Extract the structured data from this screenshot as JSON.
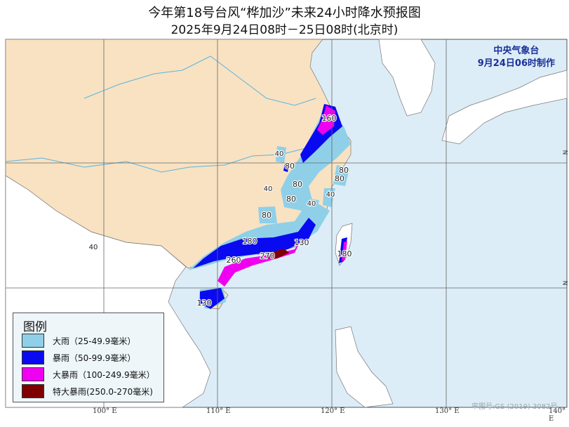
{
  "title": "今年第18号台风“桦加沙”未来24小时降水预报图",
  "subtitle": "2025年9月24日08时－25日08时(北京时)",
  "agency": {
    "name": "中央气象台",
    "issued": "9月24日06时制作"
  },
  "legend": {
    "title": "图例",
    "items": [
      {
        "label": "大雨（25-49.9毫米）",
        "color": "#8fd0e8"
      },
      {
        "label": "暴雨（50-99.9毫米）",
        "color": "#0a0af0"
      },
      {
        "label": "大暴雨（100-249.9毫米）",
        "color": "#f000f0"
      },
      {
        "label": "特大暴雨(250.0-270毫米)",
        "color": "#800000"
      }
    ]
  },
  "longitude_labels": [
    "100° E",
    "110° E",
    "120° E",
    "130° E",
    "140° E"
  ],
  "latitude_labels": [
    "N",
    "N"
  ],
  "approval_number": "审图号:GS (2019) 3082号",
  "rain_labels": [
    "160",
    "40",
    "80",
    "80",
    "40",
    "80",
    "40",
    "80",
    "80",
    "80",
    "40",
    "180",
    "130",
    "260",
    "270",
    "180",
    "130",
    "40"
  ],
  "colors": {
    "sea": "#dcedf7",
    "china_land": "#f8e2c2",
    "other_land": "#ffffff",
    "river": "#5ab4e0"
  }
}
